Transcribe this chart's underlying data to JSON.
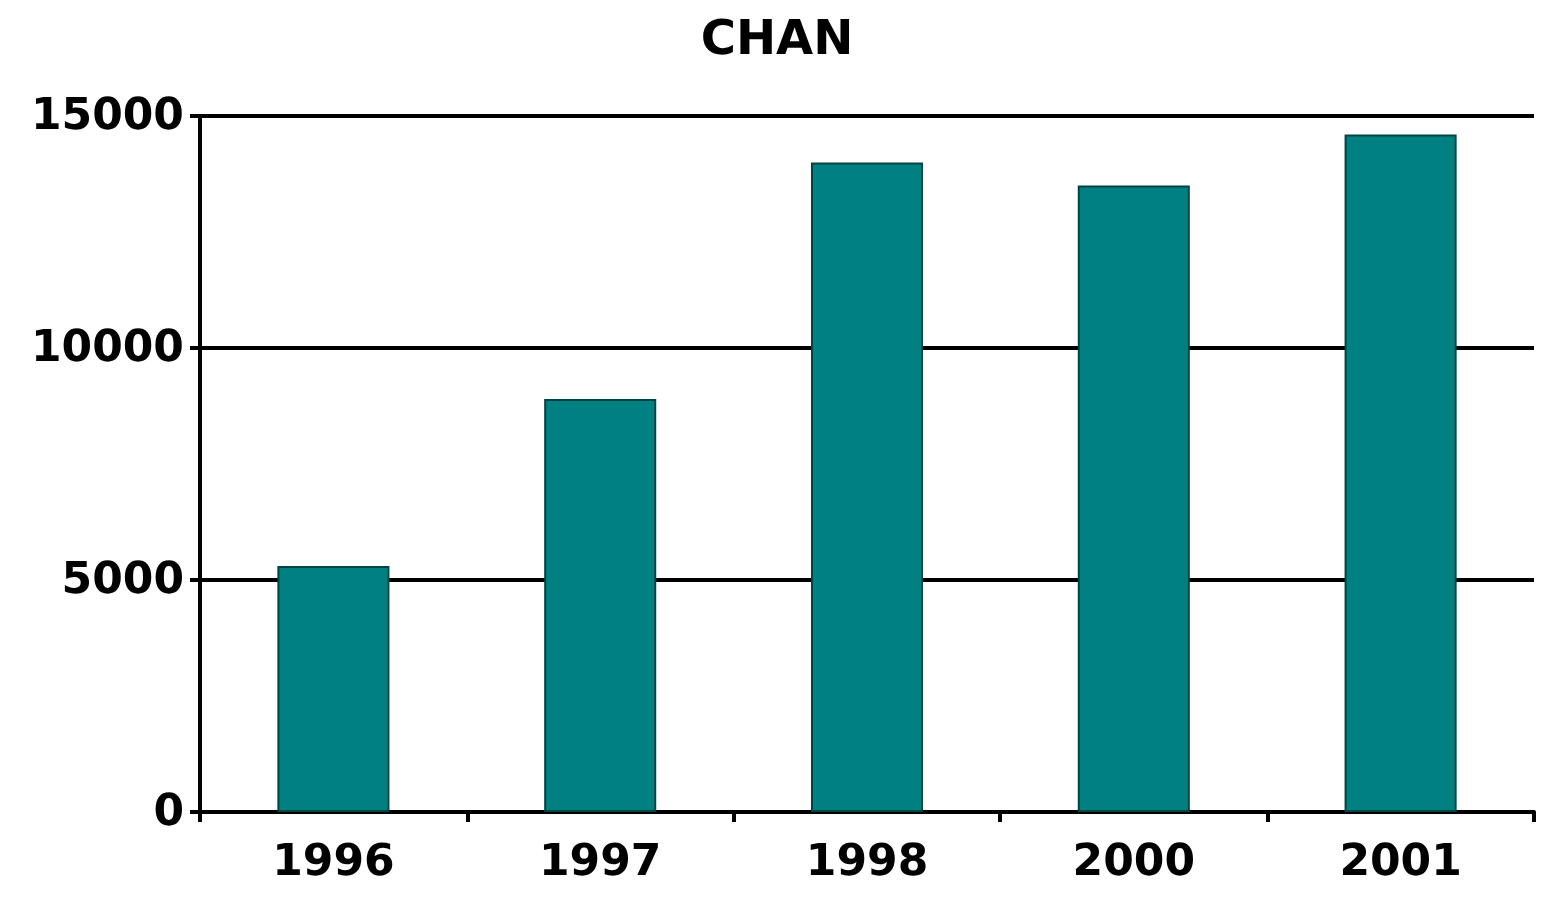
{
  "chart_data": {
    "type": "bar",
    "title": "CHAN",
    "categories": [
      "1996",
      "1997",
      "1998",
      "2000",
      "2001"
    ],
    "values": [
      5300,
      8900,
      14000,
      13500,
      14600
    ],
    "color": "#008080",
    "ylim": [
      0,
      15000
    ],
    "yticks": [
      0,
      5000,
      10000,
      15000
    ],
    "grid": "y"
  }
}
